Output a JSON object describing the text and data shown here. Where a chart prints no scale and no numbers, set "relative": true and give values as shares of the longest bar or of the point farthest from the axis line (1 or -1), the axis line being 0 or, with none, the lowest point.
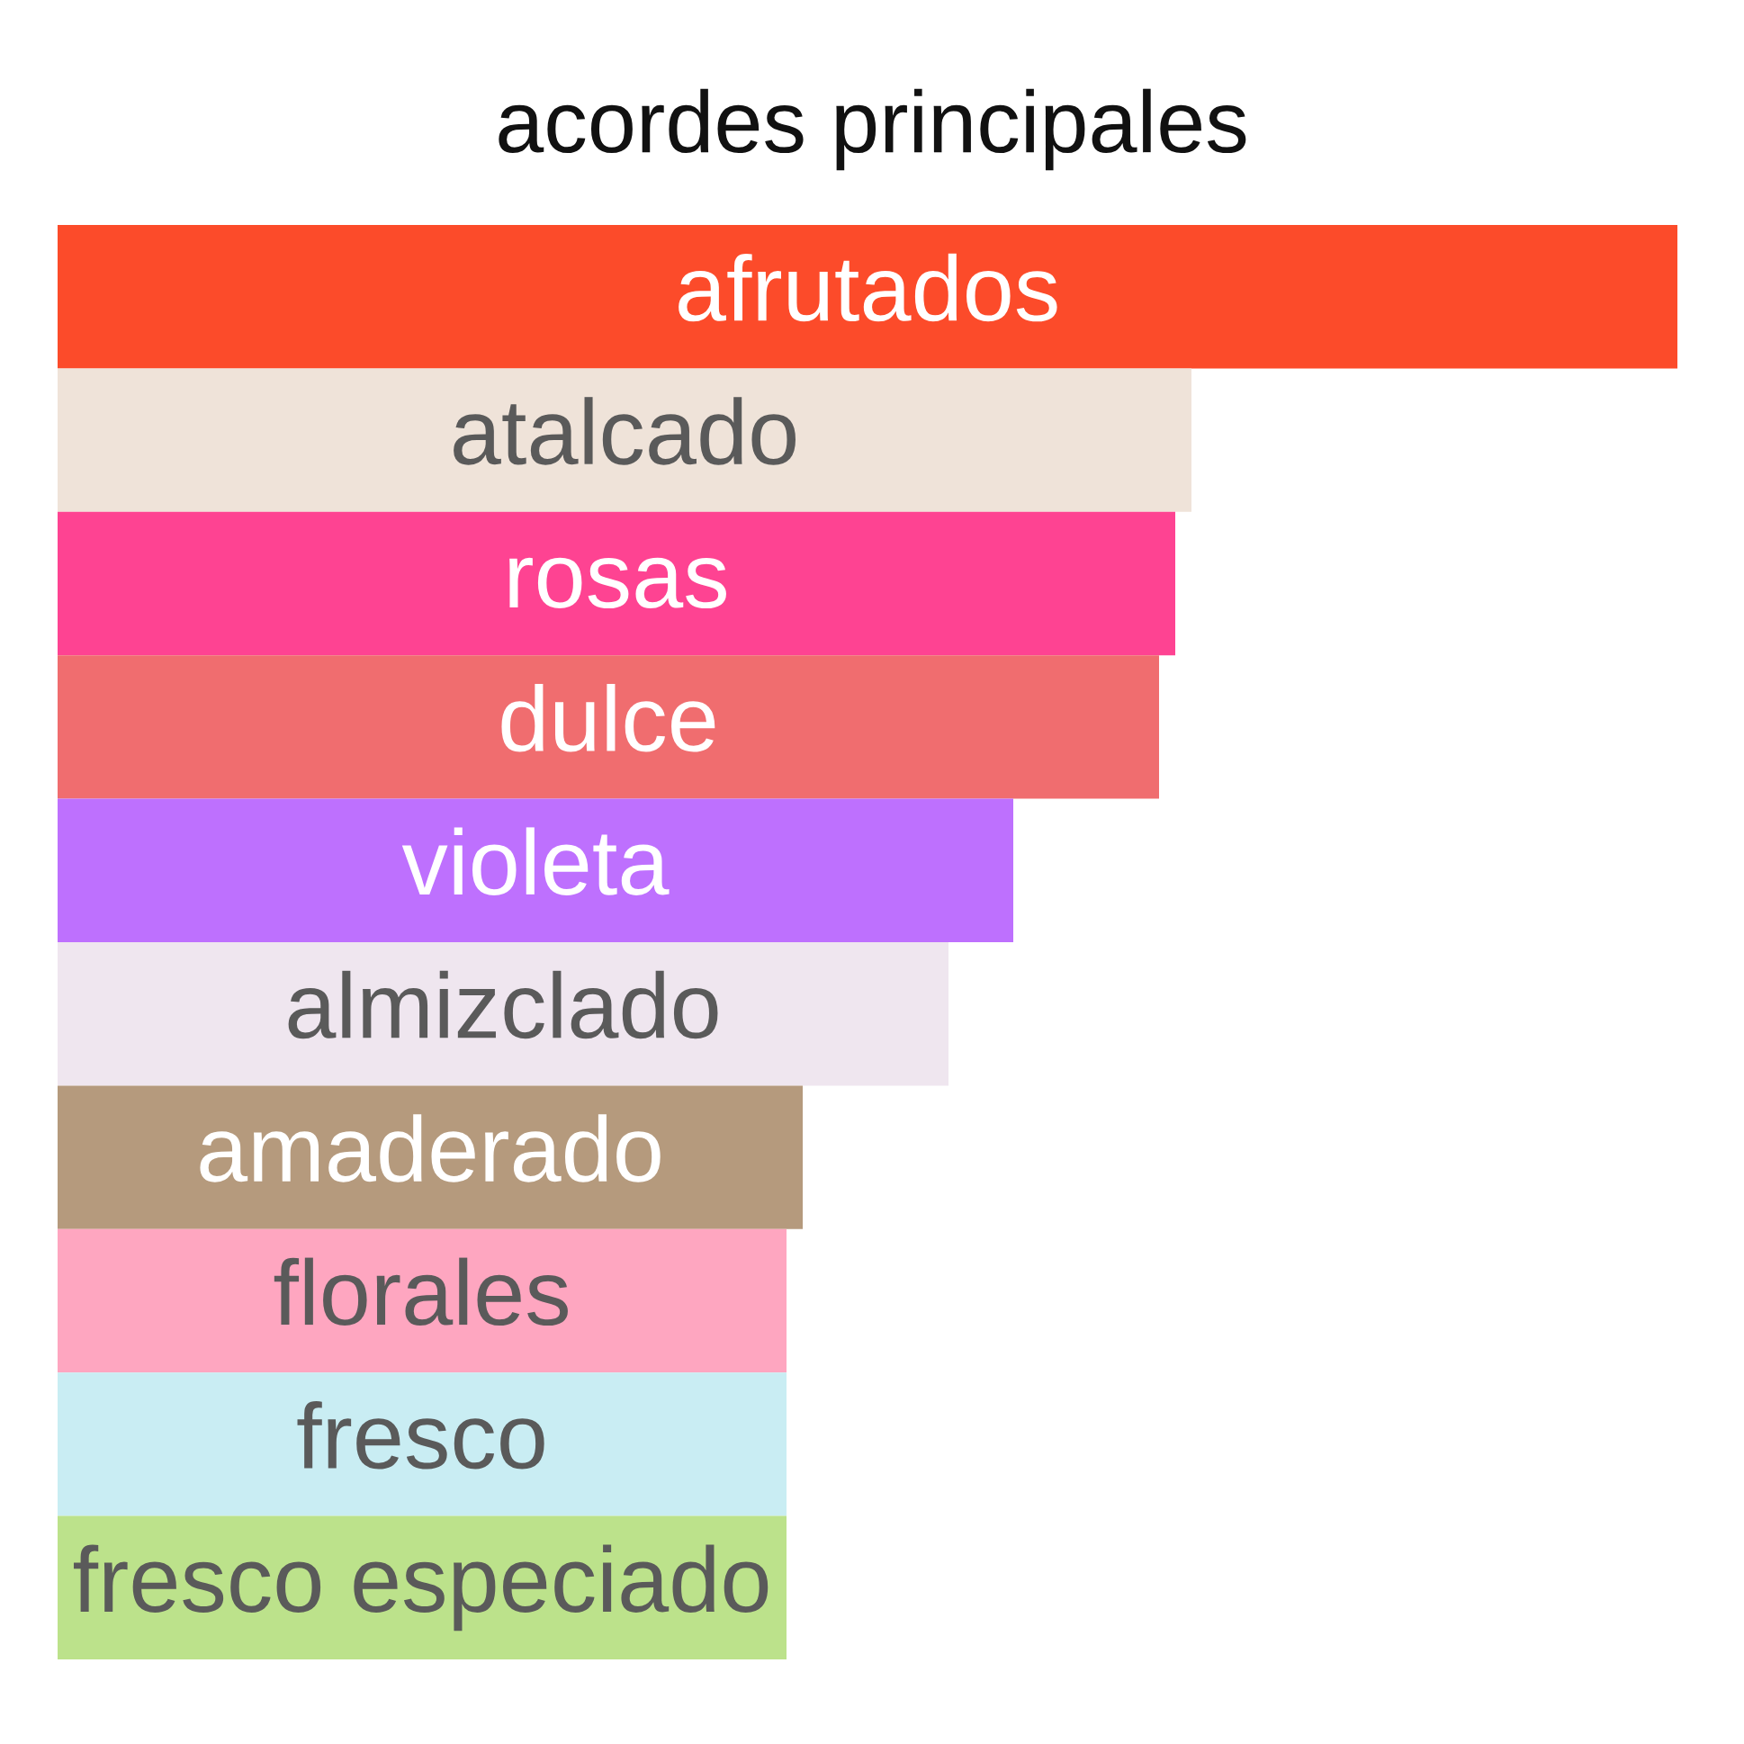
{
  "chart_data": {
    "type": "bar",
    "orientation": "horizontal",
    "relative": true,
    "title": "acordes principales",
    "categories": [
      "afrutados",
      "atalcado",
      "rosas",
      "dulce",
      "violeta",
      "almizclado",
      "amaderado",
      "florales",
      "fresco",
      "fresco especiado"
    ],
    "values": [
      1,
      0.7,
      0.69,
      0.68,
      0.59,
      0.55,
      0.46,
      0.45,
      0.45,
      0.45
    ],
    "colors": [
      "#fc4b2a",
      "#efe3d9",
      "#fe4392",
      "#f06d6f",
      "#be70fe",
      "#efe6ef",
      "#b59a7d",
      "#fea6c0",
      "#c9edf3",
      "#bce28b"
    ],
    "tick_labels": false
  }
}
